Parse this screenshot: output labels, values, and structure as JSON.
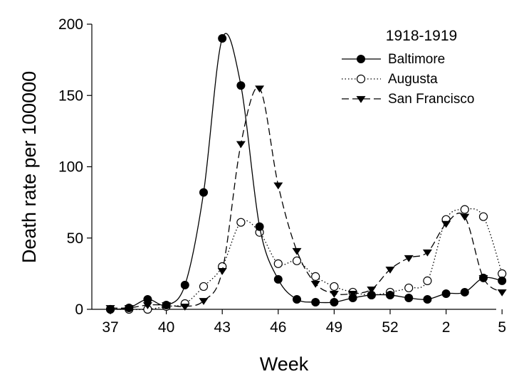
{
  "chart_data": {
    "type": "line",
    "title": "",
    "xlabel": "Week",
    "ylabel": "Death rate per 100000",
    "ylim": [
      0,
      200
    ],
    "yticks": [
      0,
      50,
      100,
      150,
      200
    ],
    "xtick_labels": [
      "37",
      "40",
      "43",
      "46",
      "49",
      "52",
      "2",
      "5"
    ],
    "x_index_range": [
      0,
      21
    ],
    "grid": false,
    "legend": {
      "title": "1918-1919",
      "position": "top-right"
    },
    "series": [
      {
        "name": "Baltimore",
        "marker": "filled-circle",
        "linestyle": "solid",
        "values": [
          0,
          1,
          7,
          3,
          17,
          82,
          190,
          157,
          58,
          21,
          7,
          5,
          5,
          8,
          10,
          10,
          8,
          7,
          11,
          12,
          22,
          20
        ]
      },
      {
        "name": "Augusta",
        "marker": "open-circle",
        "linestyle": "dotted",
        "values": [
          0,
          0,
          0,
          2,
          4,
          16,
          30,
          61,
          54,
          32,
          34,
          23,
          16,
          12,
          10,
          12,
          15,
          20,
          63,
          70,
          65,
          25
        ]
      },
      {
        "name": "San Francisco",
        "marker": "filled-triangle-down",
        "linestyle": "dashed",
        "values": [
          1,
          1,
          3,
          3,
          2,
          6,
          27,
          116,
          155,
          87,
          41,
          18,
          11,
          11,
          14,
          28,
          36,
          40,
          60,
          65,
          22,
          12
        ]
      }
    ]
  }
}
